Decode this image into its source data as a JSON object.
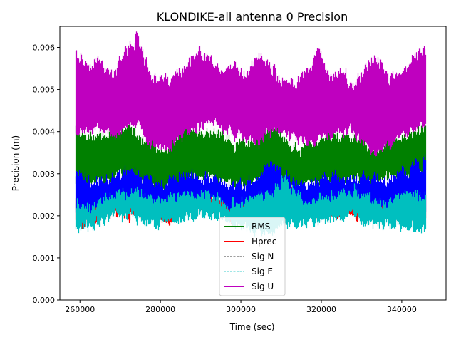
{
  "chart_data": {
    "type": "area",
    "title": "KLONDIKE-all antenna 0 Precision",
    "xlabel": "Time (sec)",
    "ylabel": "Precision (m)",
    "xlim": [
      255000,
      351000
    ],
    "ylim": [
      0,
      0.0065
    ],
    "xticks": [
      260000,
      280000,
      300000,
      320000,
      340000
    ],
    "xtick_labels": [
      "260000",
      "280000",
      "300000",
      "320000",
      "340000"
    ],
    "yticks": [
      0,
      0.001,
      0.002,
      0.003,
      0.004,
      0.005,
      0.006
    ],
    "ytick_labels": [
      "0.000",
      "0.001",
      "0.002",
      "0.003",
      "0.004",
      "0.005",
      "0.006"
    ],
    "legend_position": "lower-center",
    "note": "dense noisy series summarized as low/high envelope per 3000 s bin, values in mm",
    "x": [
      259000,
      262000,
      265000,
      268000,
      271000,
      274000,
      277000,
      280000,
      283000,
      286000,
      289000,
      292000,
      295000,
      298000,
      301000,
      304000,
      307000,
      310000,
      313000,
      316000,
      319000,
      322000,
      325000,
      328000,
      331000,
      334000,
      337000,
      340000,
      343000,
      346000
    ],
    "series": [
      {
        "name": "RMS",
        "color": "#008000",
        "style": "solid",
        "high": [
          4.2,
          3.9,
          4.0,
          4.1,
          4.2,
          4.0,
          3.8,
          3.6,
          3.8,
          4.2,
          4.0,
          4.1,
          4.0,
          3.8,
          3.8,
          3.9,
          4.2,
          4.0,
          3.6,
          3.7,
          3.8,
          4.0,
          3.9,
          4.0,
          3.8,
          3.6,
          3.8,
          4.0,
          4.0,
          4.2
        ],
        "low": [
          2.7,
          2.6,
          2.8,
          2.8,
          2.9,
          2.8,
          2.7,
          2.6,
          2.7,
          2.8,
          2.9,
          2.9,
          2.8,
          2.7,
          2.7,
          2.8,
          2.9,
          2.8,
          2.6,
          2.7,
          2.8,
          2.8,
          2.8,
          2.9,
          2.7,
          2.8,
          2.9,
          2.8,
          2.8,
          2.9
        ]
      },
      {
        "name": "Hprec",
        "color": "#ff0000",
        "style": "solid",
        "high": [
          2.4,
          2.3,
          2.4,
          2.6,
          2.6,
          2.7,
          2.5,
          2.4,
          2.5,
          2.7,
          2.6,
          2.6,
          2.4,
          2.4,
          2.4,
          2.5,
          2.6,
          2.9,
          2.7,
          2.4,
          2.4,
          2.5,
          2.6,
          2.7,
          2.5,
          2.4,
          2.4,
          2.5,
          2.6,
          2.6
        ],
        "low": [
          1.8,
          1.8,
          1.9,
          2.0,
          2.0,
          2.0,
          1.9,
          1.8,
          1.9,
          2.0,
          2.1,
          2.1,
          2.0,
          1.9,
          1.9,
          1.8,
          1.8,
          1.9,
          2.0,
          2.0,
          2.0,
          2.0,
          2.0,
          2.0,
          1.9,
          1.9,
          1.9,
          1.9,
          1.9,
          1.9
        ]
      },
      {
        "name": "Sig N",
        "color": "#0000ff",
        "legend_color": "#000000",
        "style": "dashed",
        "high": [
          3.1,
          2.9,
          2.9,
          3.0,
          3.0,
          3.1,
          3.0,
          2.8,
          2.9,
          3.1,
          3.0,
          3.0,
          2.9,
          2.8,
          2.8,
          2.9,
          3.3,
          3.1,
          2.9,
          2.8,
          2.9,
          3.0,
          3.0,
          3.0,
          3.0,
          2.9,
          2.9,
          3.1,
          3.2,
          3.3
        ],
        "low": [
          2.0,
          2.0,
          2.1,
          2.2,
          2.2,
          2.2,
          2.2,
          2.1,
          2.1,
          2.2,
          2.3,
          2.3,
          2.2,
          2.1,
          2.0,
          2.1,
          2.2,
          2.3,
          2.2,
          2.1,
          2.1,
          2.2,
          2.3,
          2.2,
          2.1,
          2.1,
          2.1,
          2.2,
          2.2,
          2.2
        ]
      },
      {
        "name": "Sig E",
        "color": "#00bfbf",
        "style": "dashed",
        "high": [
          2.4,
          2.3,
          2.4,
          2.6,
          2.6,
          2.7,
          2.5,
          2.4,
          2.5,
          2.7,
          2.6,
          2.6,
          2.4,
          2.4,
          2.4,
          2.5,
          2.6,
          2.9,
          2.7,
          2.4,
          2.4,
          2.5,
          2.6,
          2.7,
          2.5,
          2.4,
          2.4,
          2.5,
          2.6,
          2.6
        ],
        "low": [
          1.6,
          1.7,
          1.8,
          1.9,
          1.9,
          1.9,
          1.8,
          1.7,
          1.8,
          1.9,
          2.0,
          2.0,
          1.9,
          1.8,
          1.7,
          1.6,
          1.6,
          1.7,
          1.8,
          1.8,
          1.8,
          1.9,
          1.9,
          1.9,
          1.7,
          1.7,
          1.7,
          1.7,
          1.7,
          1.7
        ]
      },
      {
        "name": "Sig U",
        "color": "#bf00bf",
        "style": "solid",
        "high": [
          5.9,
          5.6,
          5.8,
          5.4,
          5.9,
          6.3,
          5.5,
          5.3,
          5.4,
          5.6,
          6.0,
          5.8,
          5.5,
          5.7,
          5.4,
          5.8,
          5.6,
          5.3,
          5.2,
          5.5,
          5.9,
          5.4,
          5.5,
          5.2,
          5.6,
          5.8,
          5.3,
          5.5,
          5.9,
          6.0
        ],
        "low": [
          4.0,
          3.9,
          4.0,
          3.8,
          4.0,
          4.1,
          3.7,
          3.5,
          3.7,
          3.9,
          4.0,
          4.2,
          4.1,
          3.9,
          3.8,
          3.7,
          3.9,
          4.0,
          3.8,
          3.7,
          3.8,
          3.8,
          4.0,
          3.9,
          3.6,
          3.5,
          3.6,
          3.8,
          4.0,
          4.1
        ]
      }
    ]
  }
}
